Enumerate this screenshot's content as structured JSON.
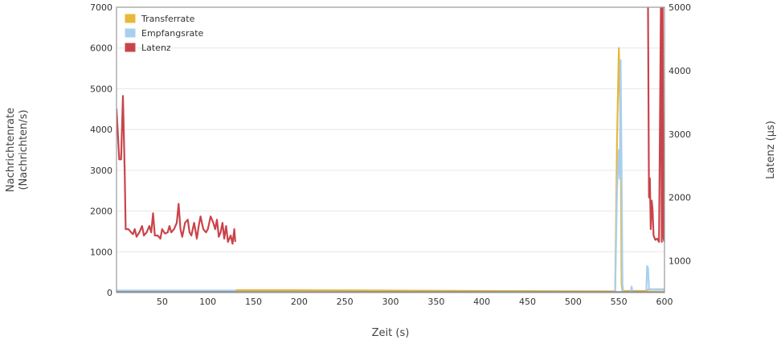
{
  "chart_data": {
    "type": "line",
    "xlabel": "Zeit (s)",
    "ylabel_left": [
      "Nachrichtenrate",
      "(Nachrichten/s)"
    ],
    "ylabel_right": "Latenz (µs)",
    "xlim": [
      0,
      600
    ],
    "ylim_left": [
      0,
      7000
    ],
    "ylim_right": [
      500,
      5000
    ],
    "x_ticks": [
      50,
      100,
      150,
      200,
      250,
      300,
      350,
      400,
      450,
      500,
      550,
      600
    ],
    "y_ticks_left": [
      0,
      1000,
      2000,
      3000,
      4000,
      5000,
      6000,
      7000
    ],
    "y_ticks_right": [
      1000,
      2000,
      3000,
      4000,
      5000
    ],
    "grid": true,
    "legend_position": "top-left",
    "series": [
      {
        "name": "Transferrate",
        "axis": "left",
        "color": "#e8b83a",
        "points": [
          [
            0,
            20
          ],
          [
            130,
            20
          ],
          [
            131,
            60
          ],
          [
            200,
            60
          ],
          [
            300,
            50
          ],
          [
            400,
            40
          ],
          [
            540,
            30
          ],
          [
            546,
            30
          ],
          [
            548,
            3700
          ],
          [
            550,
            6000
          ],
          [
            552,
            4000
          ],
          [
            553,
            200
          ],
          [
            554,
            40
          ],
          [
            560,
            40
          ],
          [
            580,
            40
          ],
          [
            582,
            70
          ],
          [
            600,
            70
          ]
        ]
      },
      {
        "name": "Empfangsrate",
        "axis": "left",
        "color": "#a9cfee",
        "points": [
          [
            0,
            50
          ],
          [
            130,
            50
          ],
          [
            131,
            10
          ],
          [
            200,
            10
          ],
          [
            300,
            10
          ],
          [
            400,
            10
          ],
          [
            540,
            10
          ],
          [
            546,
            10
          ],
          [
            548,
            2500
          ],
          [
            550,
            3500
          ],
          [
            551,
            2800
          ],
          [
            552,
            5700
          ],
          [
            553,
            3000
          ],
          [
            554,
            200
          ],
          [
            555,
            10
          ],
          [
            563,
            10
          ],
          [
            564,
            150
          ],
          [
            565,
            10
          ],
          [
            580,
            10
          ],
          [
            581,
            650
          ],
          [
            582,
            600
          ],
          [
            583,
            100
          ],
          [
            584,
            80
          ],
          [
            600,
            80
          ]
        ]
      },
      {
        "name": "Latenz",
        "axis": "right",
        "color": "#c9444a",
        "segments": [
          [
            [
              0,
              3400
            ],
            [
              3,
              2600
            ],
            [
              5,
              2600
            ],
            [
              7,
              3600
            ],
            [
              9,
              2400
            ],
            [
              10,
              1500
            ],
            [
              13,
              1500
            ],
            [
              16,
              1450
            ],
            [
              18,
              1420
            ],
            [
              20,
              1500
            ],
            [
              22,
              1380
            ],
            [
              25,
              1450
            ],
            [
              28,
              1550
            ],
            [
              30,
              1400
            ],
            [
              33,
              1450
            ],
            [
              36,
              1550
            ],
            [
              38,
              1450
            ],
            [
              40,
              1750
            ],
            [
              42,
              1400
            ],
            [
              45,
              1400
            ],
            [
              48,
              1350
            ],
            [
              50,
              1500
            ],
            [
              53,
              1430
            ],
            [
              56,
              1450
            ],
            [
              58,
              1550
            ],
            [
              60,
              1450
            ],
            [
              63,
              1500
            ],
            [
              66,
              1600
            ],
            [
              68,
              1900
            ],
            [
              70,
              1500
            ],
            [
              72,
              1380
            ],
            [
              75,
              1600
            ],
            [
              78,
              1650
            ],
            [
              80,
              1450
            ],
            [
              82,
              1400
            ],
            [
              85,
              1600
            ],
            [
              88,
              1350
            ],
            [
              90,
              1550
            ],
            [
              92,
              1700
            ],
            [
              95,
              1500
            ],
            [
              98,
              1450
            ],
            [
              100,
              1500
            ],
            [
              103,
              1700
            ],
            [
              106,
              1600
            ],
            [
              108,
              1500
            ],
            [
              110,
              1650
            ],
            [
              112,
              1380
            ],
            [
              114,
              1450
            ],
            [
              116,
              1600
            ],
            [
              118,
              1350
            ],
            [
              120,
              1550
            ],
            [
              122,
              1300
            ],
            [
              125,
              1400
            ],
            [
              127,
              1270
            ],
            [
              129,
              1500
            ],
            [
              130,
              1300
            ]
          ],
          [
            [
              582,
              5000
            ],
            [
              583,
              2000
            ],
            [
              584,
              2300
            ],
            [
              585,
              1500
            ],
            [
              586,
              1950
            ],
            [
              587,
              1800
            ],
            [
              588,
              1400
            ],
            [
              590,
              1330
            ],
            [
              592,
              1350
            ],
            [
              594,
              1300
            ],
            [
              596,
              5000
            ],
            [
              597,
              1300
            ],
            [
              598,
              5000
            ],
            [
              599,
              1350
            ],
            [
              600,
              1300
            ]
          ]
        ]
      }
    ]
  }
}
